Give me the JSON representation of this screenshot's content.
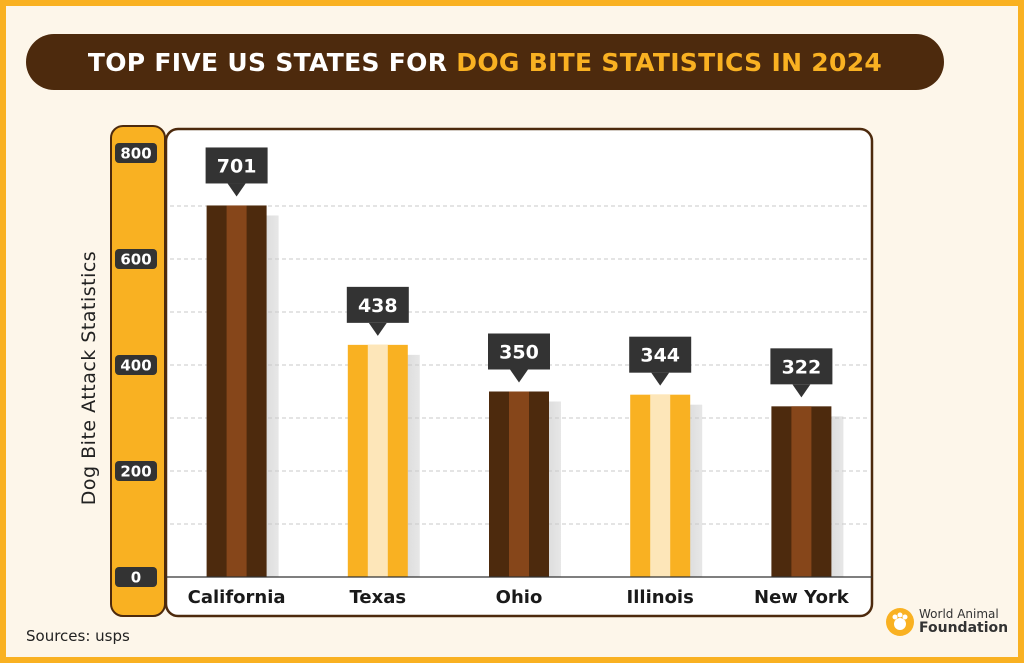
{
  "title": {
    "part1": "TOP FIVE US STATES FOR",
    "part2": "DOG BITE STATISTICS IN 2024"
  },
  "sources": "Sources: usps",
  "logo": {
    "line1": "World Animal",
    "line2": "Foundation"
  },
  "colors": {
    "accent": "#f9b122",
    "dark_brown": "#4d2a0d",
    "mid_brown": "#86461a",
    "light_yellow": "#fde6b9",
    "label_bg": "#333333"
  },
  "chart_data": {
    "type": "bar",
    "title": "TOP FIVE US STATES FOR DOG BITE STATISTICS IN 2024",
    "xlabel": "",
    "ylabel": "Dog Bite Attack Statistics",
    "categories": [
      "California",
      "Texas",
      "Ohio",
      "Illinois",
      "New York"
    ],
    "values": [
      701,
      438,
      350,
      344,
      322
    ],
    "data_labels": [
      "701",
      "438",
      "350",
      "344",
      "322"
    ],
    "ylim": [
      0,
      800
    ],
    "yticks": [
      0,
      200,
      400,
      600,
      800
    ],
    "ytick_labels": [
      "0",
      "200",
      "400",
      "600",
      "800"
    ],
    "grid": true,
    "legend": "none",
    "bar_styles": [
      "brown",
      "yellow",
      "brown",
      "yellow",
      "brown"
    ]
  }
}
